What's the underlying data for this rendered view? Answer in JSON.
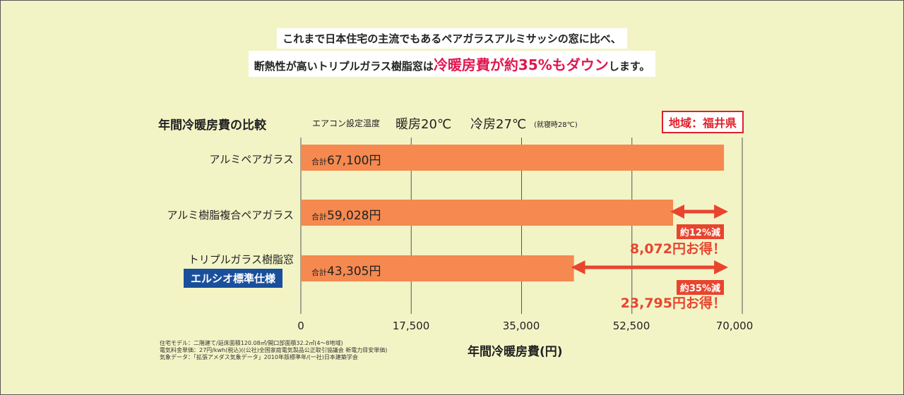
{
  "headline": {
    "line1": "これまで日本住宅の主流でもあるペアガラスアルミサッシの窓に比べ、",
    "line2_pre": "断熱性が高いトリプルガラス樹脂窓は",
    "line2_highlight": "冷暖房費が約35%もダウン",
    "line2_post": "します。"
  },
  "header": {
    "title": "年間冷暖房費の比較",
    "setting_label": "エアコン設定温度",
    "heating": "暖房20℃",
    "cooling": "冷房27℃",
    "cooling_note": "(就寝時28℃)",
    "region": "地域：福井県"
  },
  "chart_data": {
    "type": "bar",
    "orientation": "horizontal",
    "categories": [
      "アルミペアガラス",
      "アルミ樹脂複合ペアガラス",
      "トリプルガラス樹脂窓"
    ],
    "category_badge": "エルシオ標準仕様",
    "values": [
      67100,
      59028,
      43305
    ],
    "value_labels": [
      {
        "prefix": "合計",
        "value": "67,100円"
      },
      {
        "prefix": "合計",
        "value": "59,028円"
      },
      {
        "prefix": "合計",
        "value": "43,305円"
      }
    ],
    "xlim": [
      0,
      70000
    ],
    "xticks": [
      "0",
      "17,500",
      "35,000",
      "52,500",
      "70,000"
    ],
    "xlabel": "年間冷暖房費(円)",
    "grid": true,
    "annotations": [
      {
        "tag": "約12%減",
        "saving": "8,072円お得！"
      },
      {
        "tag": "約35%減",
        "saving": "23,795円お得！"
      }
    ],
    "colors": {
      "bar": "#f5894f",
      "arrow": "#e8452f",
      "grid": "#555555"
    }
  },
  "notes": [
    "住宅モデル：二階建て/延床面積120.08㎡/開口部面積32.2㎡(4～8地域)",
    "電気料金単価：27円/kwh(税込)((公社)全国家庭電気製品公正取引協議会 新電力目安単価)",
    "気象データ：「拡張アメダス気象データ」2010年版標準年/(一社)日本建築学会"
  ]
}
